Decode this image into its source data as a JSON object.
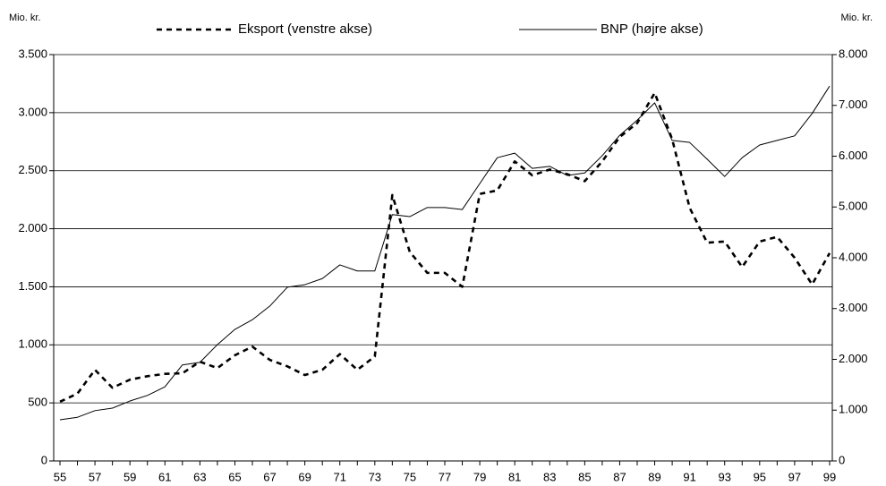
{
  "chart_data": {
    "type": "line",
    "y_label": "Mio. kr.",
    "y2_label": "Mio. kr.",
    "categories": [
      "55",
      null,
      "57",
      null,
      "59",
      null,
      "61",
      null,
      "63",
      null,
      "65",
      null,
      "67",
      null,
      "69",
      null,
      "71",
      null,
      "73",
      null,
      "75",
      null,
      "77",
      null,
      "79",
      null,
      "81",
      null,
      "83",
      null,
      "85",
      null,
      "87",
      null,
      "89",
      null,
      "91",
      null,
      "93",
      null,
      "95",
      null,
      "97",
      null,
      "99"
    ],
    "series": [
      {
        "name": "Eksport (venstre akse)",
        "color": "#000000",
        "dashed": true,
        "axis": "y",
        "values": [
          510,
          580,
          785,
          630,
          700,
          730,
          750,
          755,
          855,
          800,
          910,
          985,
          870,
          815,
          740,
          785,
          920,
          785,
          900,
          2290,
          1800,
          1620,
          1620,
          1500,
          2300,
          2330,
          2580,
          2460,
          2510,
          2470,
          2410,
          2580,
          2790,
          2910,
          3170,
          2770,
          2180,
          1880,
          1890,
          1670,
          1890,
          1930,
          1750,
          1520,
          1790
        ]
      },
      {
        "name": "BNP (højre akse)",
        "color": "#000000",
        "dashed": false,
        "axis": "y2",
        "values": [
          810,
          860,
          990,
          1040,
          1180,
          1290,
          1460,
          1890,
          1940,
          2290,
          2590,
          2780,
          3050,
          3420,
          3470,
          3590,
          3860,
          3740,
          3740,
          4850,
          4810,
          4990,
          4990,
          4950,
          5460,
          5970,
          6060,
          5760,
          5800,
          5620,
          5670,
          6010,
          6410,
          6710,
          7050,
          6310,
          6270,
          5940,
          5600,
          5970,
          6220,
          6310,
          6400,
          6840,
          7380
        ]
      }
    ],
    "ylim": [
      0,
      3500
    ],
    "yticks": [
      0,
      500,
      {
        "value": 1000,
        "label": "1.000"
      },
      {
        "value": 1500,
        "label": "1.500"
      },
      {
        "value": 2000,
        "label": "2.000"
      },
      {
        "value": 2500,
        "label": "2.500"
      },
      {
        "value": 3000,
        "label": "3.000"
      },
      {
        "value": 3500,
        "label": "3.500"
      }
    ],
    "y2lim": [
      0,
      8000
    ],
    "y2ticks": [
      0,
      {
        "value": 1000,
        "label": "1.000"
      },
      {
        "value": 2000,
        "label": "2.000"
      },
      {
        "value": 3000,
        "label": "3.000"
      },
      {
        "value": 4000,
        "label": "4.000"
      },
      {
        "value": 5000,
        "label": "5.000"
      },
      {
        "value": 6000,
        "label": "6.000"
      },
      {
        "value": 7000,
        "label": "7.000"
      },
      {
        "value": 8000,
        "label": "8.000"
      }
    ],
    "grid": true,
    "legend": "top"
  }
}
